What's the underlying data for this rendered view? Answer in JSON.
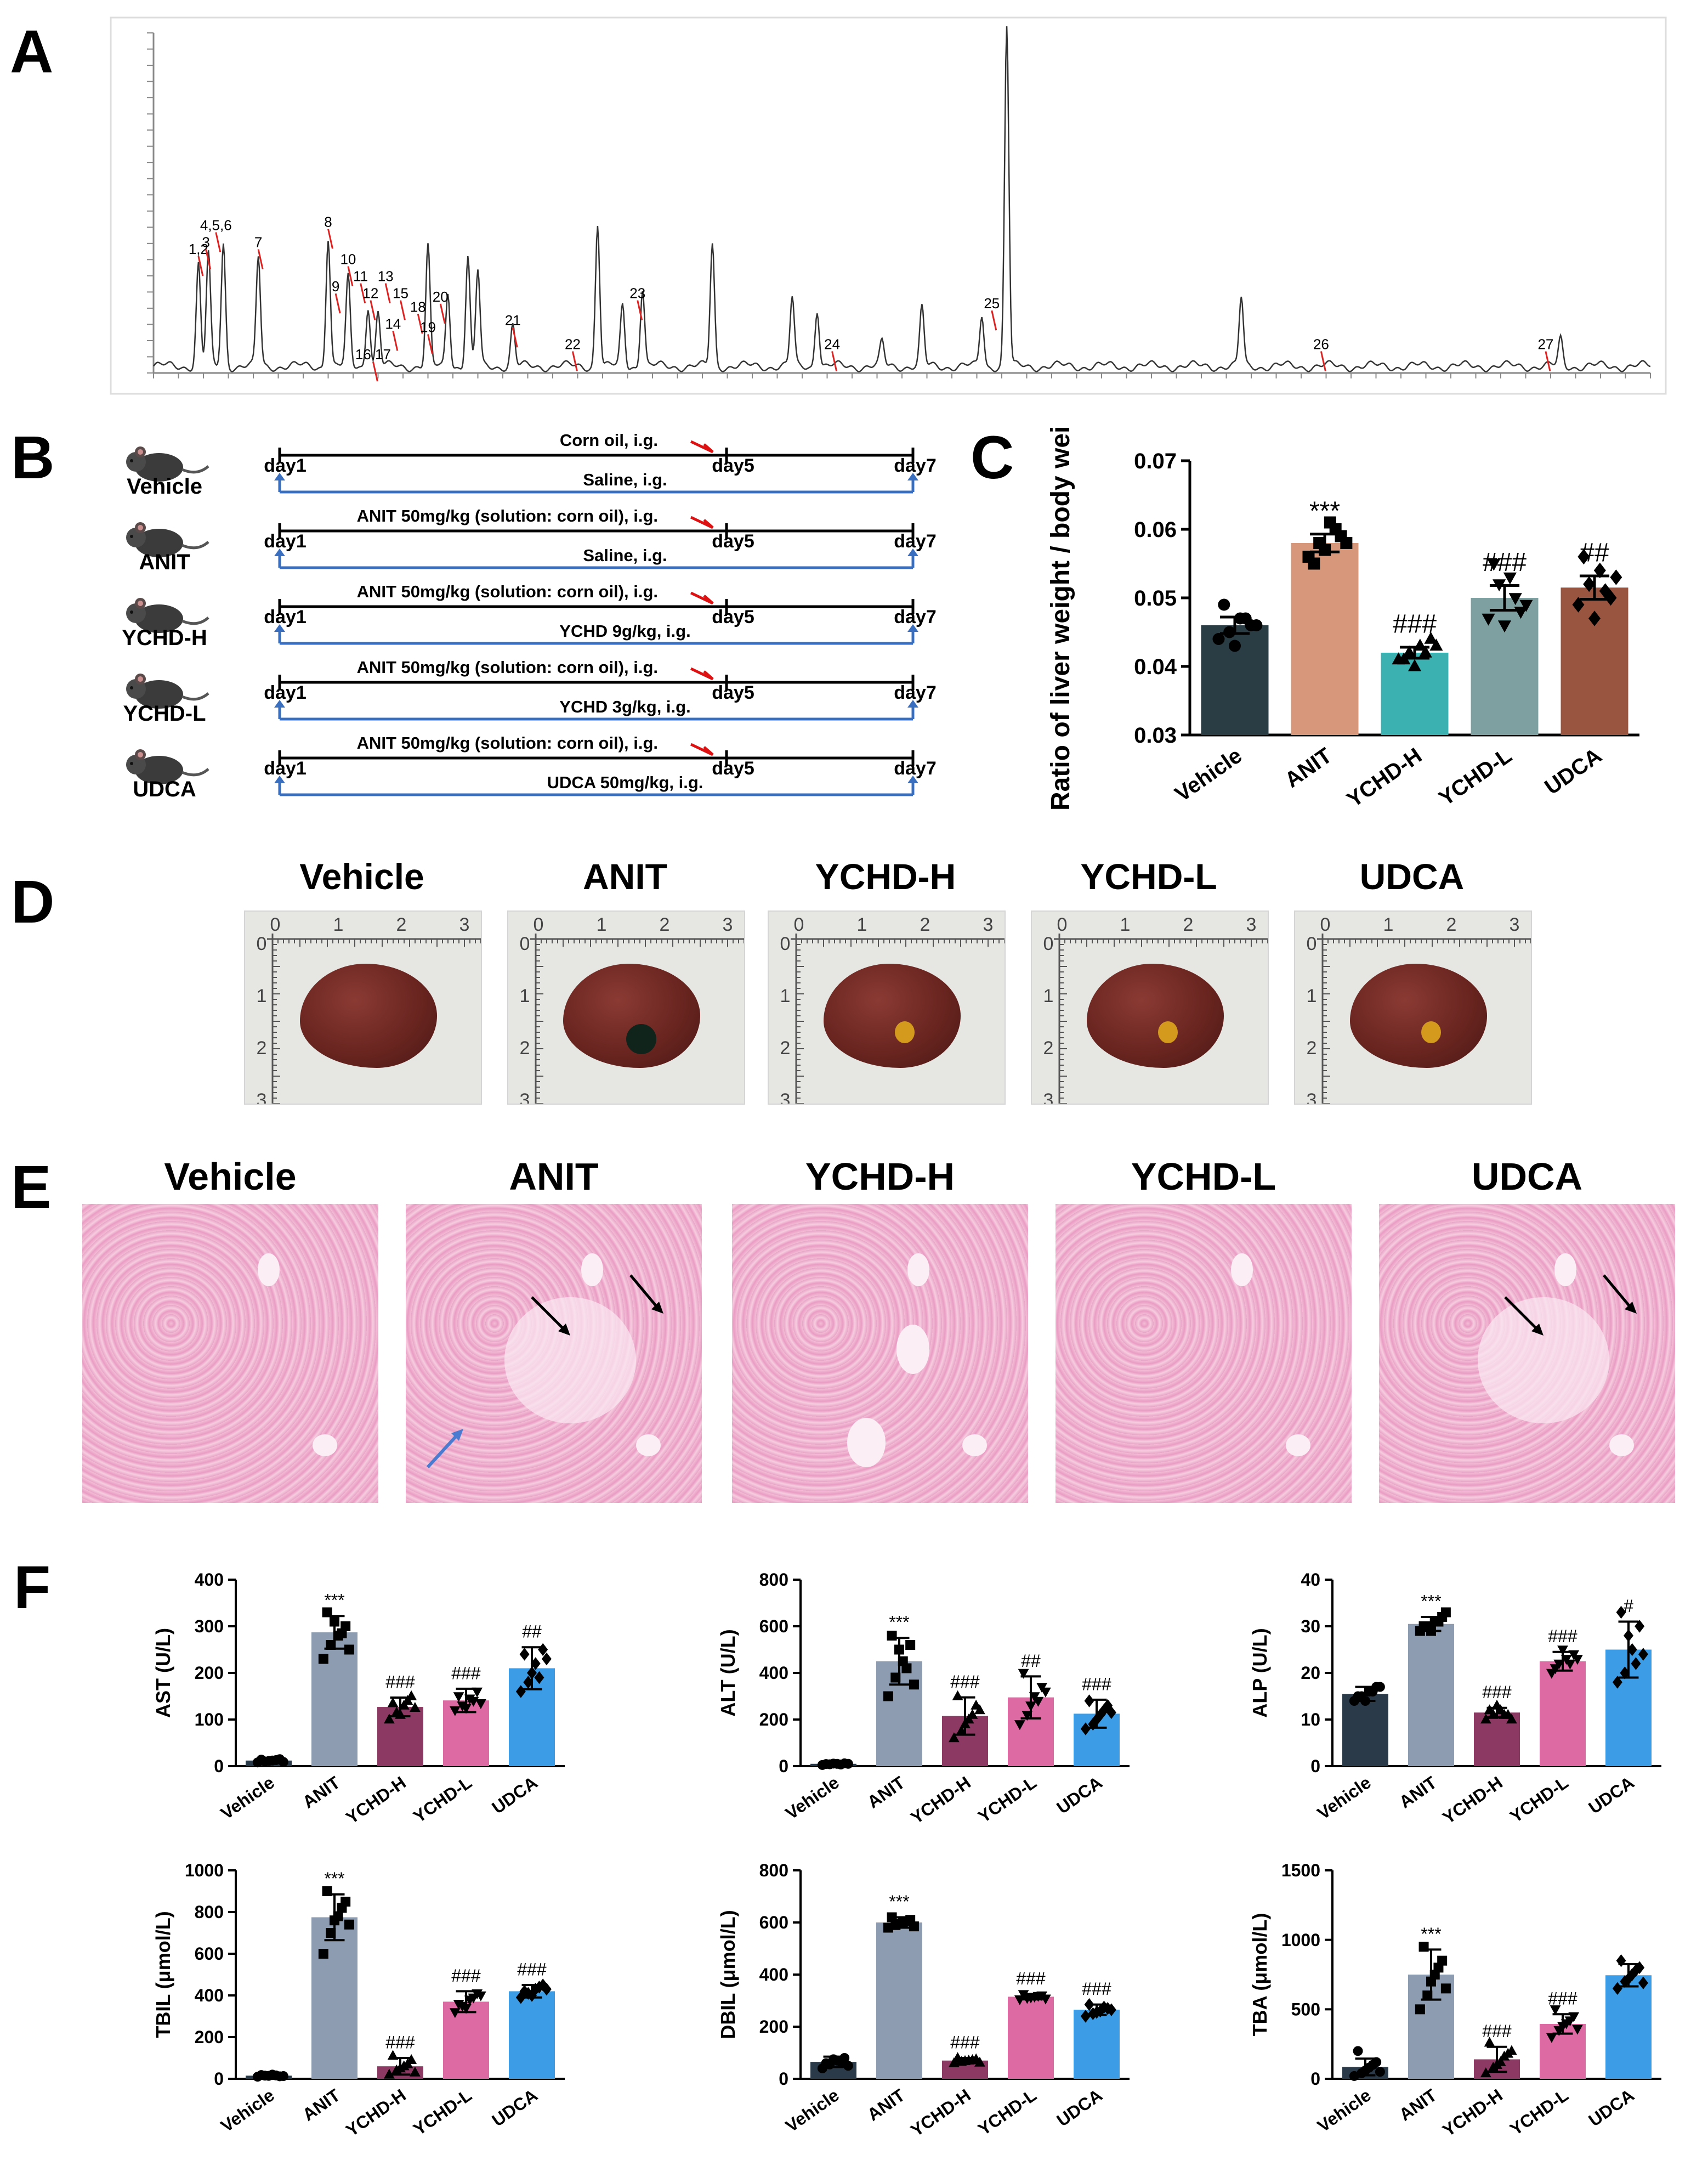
{
  "panels": {
    "A": "A",
    "B": "B",
    "C": "C",
    "D": "D",
    "E": "E",
    "F": "F"
  },
  "colors": {
    "Vehicle": "#2b3d44",
    "ANIT": "#d7977a",
    "YCHD-H": "#3cb1b1",
    "YCHD-L": "#7fa0a0",
    "UDCA": "#9a5540",
    "F_Vehicle": "#2b3a48",
    "F_ANIT": "#8d9cb0",
    "F_YCHD-H": "#8c3a63",
    "F_YCHD-L": "#dd6aa2",
    "F_UDCA": "#3c9ce6"
  },
  "panel_b": {
    "groups": [
      {
        "label": "Vehicle",
        "top_text": "Corn oil, i.g.",
        "bottom_text": "Saline, i.g."
      },
      {
        "label": "ANIT",
        "top_text": "ANIT 50mg/kg (solution: corn oil), i.g.",
        "bottom_text": "Saline, i.g."
      },
      {
        "label": "YCHD-H",
        "top_text": "ANIT 50mg/kg (solution: corn oil), i.g.",
        "bottom_text": "YCHD 9g/kg, i.g."
      },
      {
        "label": "YCHD-L",
        "top_text": "ANIT 50mg/kg (solution: corn oil), i.g.",
        "bottom_text": "YCHD 3g/kg, i.g."
      },
      {
        "label": "UDCA",
        "top_text": "ANIT 50mg/kg (solution: corn oil), i.g.",
        "bottom_text": "UDCA 50mg/kg, i.g."
      }
    ],
    "day_start": "day1",
    "day_mid": "day5",
    "day_end": "day7"
  },
  "panel_d": {
    "titles": [
      "Vehicle",
      "ANIT",
      "YCHD-H",
      "YCHD-L",
      "UDCA"
    ],
    "ruler": [
      "0",
      "1",
      "2",
      "3"
    ]
  },
  "panel_e": {
    "titles": [
      "Vehicle",
      "ANIT",
      "YCHD-H",
      "YCHD-L",
      "UDCA"
    ]
  },
  "chart_data": [
    {
      "id": "A",
      "type": "line",
      "title": "",
      "xlabel": "",
      "ylabel": "",
      "ylim": [
        0,
        1.05
      ],
      "peaks": [
        {
          "t": 0.9,
          "h": 0.3
        },
        {
          "t": 1.1,
          "h": 0.33
        },
        {
          "t": 1.4,
          "h": 0.36
        },
        {
          "t": 2.1,
          "h": 0.32
        },
        {
          "t": 3.5,
          "h": 0.38
        },
        {
          "t": 3.9,
          "h": 0.26
        },
        {
          "t": 4.3,
          "h": 0.18
        },
        {
          "t": 4.5,
          "h": 0.16
        },
        {
          "t": 5.5,
          "h": 0.35
        },
        {
          "t": 5.9,
          "h": 0.22
        },
        {
          "t": 6.3,
          "h": 0.32
        },
        {
          "t": 6.5,
          "h": 0.28
        },
        {
          "t": 7.2,
          "h": 0.12
        },
        {
          "t": 8.9,
          "h": 0.42
        },
        {
          "t": 9.4,
          "h": 0.18
        },
        {
          "t": 9.8,
          "h": 0.23
        },
        {
          "t": 11.2,
          "h": 0.36
        },
        {
          "t": 12.8,
          "h": 0.2
        },
        {
          "t": 13.3,
          "h": 0.17
        },
        {
          "t": 14.6,
          "h": 0.07
        },
        {
          "t": 15.4,
          "h": 0.17
        },
        {
          "t": 16.6,
          "h": 0.15
        },
        {
          "t": 17.1,
          "h": 1.0
        },
        {
          "t": 21.8,
          "h": 0.2
        },
        {
          "t": 28.2,
          "h": 0.08
        }
      ],
      "peak_labels": [
        {
          "label": "1,2",
          "t": 0.9,
          "h": 0.35
        },
        {
          "label": "3",
          "t": 1.05,
          "h": 0.37
        },
        {
          "label": "4,5,6",
          "t": 1.25,
          "h": 0.42
        },
        {
          "label": "7",
          "t": 2.1,
          "h": 0.37
        },
        {
          "label": "8",
          "t": 3.5,
          "h": 0.43
        },
        {
          "label": "9",
          "t": 3.65,
          "h": 0.24
        },
        {
          "label": "10",
          "t": 3.9,
          "h": 0.32
        },
        {
          "label": "11",
          "t": 4.15,
          "h": 0.27
        },
        {
          "label": "12",
          "t": 4.35,
          "h": 0.22
        },
        {
          "label": "13",
          "t": 4.65,
          "h": 0.27
        },
        {
          "label": "14",
          "t": 4.8,
          "h": 0.13
        },
        {
          "label": "15",
          "t": 4.95,
          "h": 0.22
        },
        {
          "label": "16,17",
          "t": 4.4,
          "h": 0.04
        },
        {
          "label": "18",
          "t": 5.3,
          "h": 0.18
        },
        {
          "label": "19",
          "t": 5.5,
          "h": 0.12
        },
        {
          "label": "20",
          "t": 5.75,
          "h": 0.21
        },
        {
          "label": "21",
          "t": 7.2,
          "h": 0.14
        },
        {
          "label": "22",
          "t": 8.4,
          "h": 0.07
        },
        {
          "label": "23",
          "t": 9.7,
          "h": 0.22
        },
        {
          "label": "24",
          "t": 13.6,
          "h": 0.07
        },
        {
          "label": "25",
          "t": 16.8,
          "h": 0.19
        },
        {
          "label": "26",
          "t": 23.4,
          "h": 0.07
        },
        {
          "label": "27",
          "t": 27.9,
          "h": 0.07
        }
      ]
    },
    {
      "id": "C",
      "type": "bar",
      "title": "",
      "ylabel": "Ratio of liver weight / body weight",
      "ylim": [
        0.03,
        0.07
      ],
      "yticks": [
        "0.03",
        "0.04",
        "0.05",
        "0.06",
        "0.07"
      ],
      "categories": [
        "Vehicle",
        "ANIT",
        "YCHD-H",
        "YCHD-L",
        "UDCA"
      ],
      "values": [
        0.046,
        0.058,
        0.042,
        0.05,
        0.0515
      ],
      "errors": [
        0.0012,
        0.0013,
        0.0008,
        0.0018,
        0.0017
      ],
      "annotations": [
        "",
        "***",
        "###",
        "###",
        "##"
      ],
      "points": [
        [
          0.044,
          0.045,
          0.047,
          0.046,
          0.049,
          0.043,
          0.047,
          0.046
        ],
        [
          0.056,
          0.058,
          0.061,
          0.059,
          0.055,
          0.057,
          0.06,
          0.058
        ],
        [
          0.041,
          0.042,
          0.043,
          0.044,
          0.041,
          0.04,
          0.042,
          0.043
        ],
        [
          0.047,
          0.052,
          0.053,
          0.048,
          0.055,
          0.046,
          0.05,
          0.049
        ],
        [
          0.049,
          0.052,
          0.054,
          0.05,
          0.056,
          0.047,
          0.051,
          0.053
        ]
      ]
    },
    {
      "id": "AST",
      "type": "bar",
      "ylabel": "AST (U/L)",
      "ylim": [
        0,
        400
      ],
      "yticks": [
        "0",
        "100",
        "200",
        "300",
        "400"
      ],
      "categories": [
        "Vehicle",
        "ANIT",
        "YCHD-H",
        "YCHD-L",
        "UDCA"
      ],
      "values": [
        12,
        287,
        127,
        141,
        210
      ],
      "errors": [
        4,
        35,
        20,
        25,
        45
      ],
      "annotations": [
        "",
        "***",
        "###",
        "###",
        "##"
      ],
      "points": [
        [
          8,
          10,
          12,
          15,
          14,
          11,
          13,
          9
        ],
        [
          230,
          260,
          280,
          300,
          330,
          310,
          285,
          250
        ],
        [
          100,
          115,
          130,
          150,
          135,
          110,
          140,
          125
        ],
        [
          120,
          130,
          145,
          160,
          150,
          125,
          140,
          135
        ],
        [
          160,
          180,
          220,
          250,
          240,
          200,
          190,
          230
        ]
      ]
    },
    {
      "id": "ALT",
      "type": "bar",
      "ylabel": "ALT (U/L)",
      "ylim": [
        0,
        800
      ],
      "yticks": [
        "0",
        "200",
        "400",
        "600",
        "800"
      ],
      "categories": [
        "Vehicle",
        "ANIT",
        "YCHD-H",
        "YCHD-L",
        "UDCA"
      ],
      "values": [
        10,
        450,
        215,
        295,
        225
      ],
      "errors": [
        5,
        100,
        80,
        90,
        60
      ],
      "annotations": [
        "",
        "***",
        "###",
        "##",
        "###"
      ],
      "points": [
        [
          5,
          8,
          10,
          12,
          9,
          11,
          7,
          10
        ],
        [
          300,
          380,
          450,
          520,
          560,
          500,
          420,
          350
        ],
        [
          120,
          150,
          200,
          260,
          300,
          180,
          220,
          240
        ],
        [
          180,
          220,
          300,
          340,
          400,
          260,
          280,
          320
        ],
        [
          160,
          180,
          220,
          260,
          280,
          200,
          240,
          230
        ]
      ]
    },
    {
      "id": "ALP",
      "type": "bar",
      "ylabel": "ALP (U/L)",
      "ylim": [
        0,
        40
      ],
      "yticks": [
        "0",
        "10",
        "20",
        "30",
        "40"
      ],
      "categories": [
        "Vehicle",
        "ANIT",
        "YCHD-H",
        "YCHD-L",
        "UDCA"
      ],
      "values": [
        15.5,
        30.5,
        11.5,
        22.5,
        25
      ],
      "errors": [
        1.5,
        1.5,
        1,
        2,
        6
      ],
      "annotations": [
        "",
        "***",
        "###",
        "###",
        "#"
      ],
      "points": [
        [
          14,
          15,
          16,
          17,
          15,
          14,
          16,
          17
        ],
        [
          29,
          30,
          31,
          32,
          30,
          29,
          31,
          33
        ],
        [
          10,
          11,
          12,
          11,
          12,
          13,
          11,
          10
        ],
        [
          20,
          22,
          23,
          24,
          21,
          25,
          22,
          23
        ],
        [
          18,
          20,
          25,
          30,
          33,
          28,
          22,
          24
        ]
      ]
    },
    {
      "id": "TBIL",
      "type": "bar",
      "ylabel": "TBIL (μmol/L)",
      "ylim": [
        0,
        1000
      ],
      "yticks": [
        "0",
        "200",
        "400",
        "600",
        "800",
        "1000"
      ],
      "categories": [
        "Vehicle",
        "ANIT",
        "YCHD-H",
        "YCHD-L",
        "UDCA"
      ],
      "values": [
        15,
        775,
        60,
        370,
        420
      ],
      "errors": [
        5,
        110,
        40,
        50,
        30
      ],
      "annotations": [
        "",
        "***",
        "###",
        "###",
        "###"
      ],
      "points": [
        [
          10,
          15,
          20,
          12,
          18,
          14,
          16,
          13
        ],
        [
          600,
          700,
          780,
          850,
          900,
          760,
          820,
          740
        ],
        [
          20,
          40,
          60,
          90,
          110,
          50,
          70,
          30
        ],
        [
          320,
          350,
          380,
          410,
          360,
          340,
          390,
          400
        ],
        [
          390,
          410,
          430,
          450,
          420,
          400,
          440,
          430
        ]
      ]
    },
    {
      "id": "DBIL",
      "type": "bar",
      "ylabel": "DBIL (μmol/L)",
      "ylim": [
        0,
        800
      ],
      "yticks": [
        "0",
        "200",
        "400",
        "600",
        "800"
      ],
      "categories": [
        "Vehicle",
        "ANIT",
        "YCHD-H",
        "YCHD-L",
        "UDCA"
      ],
      "values": [
        65,
        600,
        70,
        315,
        265
      ],
      "errors": [
        20,
        20,
        10,
        10,
        20
      ],
      "annotations": [
        "",
        "***",
        "###",
        "###",
        "###"
      ],
      "points": [
        [
          40,
          55,
          70,
          80,
          60,
          75,
          65,
          50
        ],
        [
          580,
          590,
          600,
          610,
          620,
          595,
          605,
          585
        ],
        [
          60,
          65,
          70,
          75,
          80,
          68,
          72,
          62
        ],
        [
          305,
          310,
          315,
          320,
          325,
          312,
          318,
          308
        ],
        [
          240,
          250,
          260,
          270,
          285,
          255,
          275,
          265
        ]
      ]
    },
    {
      "id": "TBA",
      "type": "bar",
      "ylabel": "TBA (μmol/L)",
      "ylim": [
        0,
        1500
      ],
      "yticks": [
        "0",
        "500",
        "1000",
        "1500"
      ],
      "categories": [
        "Vehicle",
        "ANIT",
        "YCHD-H",
        "YCHD-L",
        "UDCA"
      ],
      "values": [
        85,
        750,
        140,
        395,
        745
      ],
      "errors": [
        60,
        180,
        90,
        70,
        80
      ],
      "annotations": [
        "",
        "***",
        "###",
        "###",
        ""
      ],
      "points": [
        [
          20,
          40,
          80,
          120,
          200,
          60,
          100,
          50
        ],
        [
          500,
          600,
          750,
          850,
          950,
          700,
          800,
          650
        ],
        [
          40,
          80,
          120,
          180,
          260,
          100,
          160,
          200
        ],
        [
          300,
          350,
          400,
          450,
          500,
          380,
          420,
          360
        ],
        [
          650,
          700,
          750,
          800,
          850,
          720,
          780,
          690
        ]
      ]
    }
  ]
}
